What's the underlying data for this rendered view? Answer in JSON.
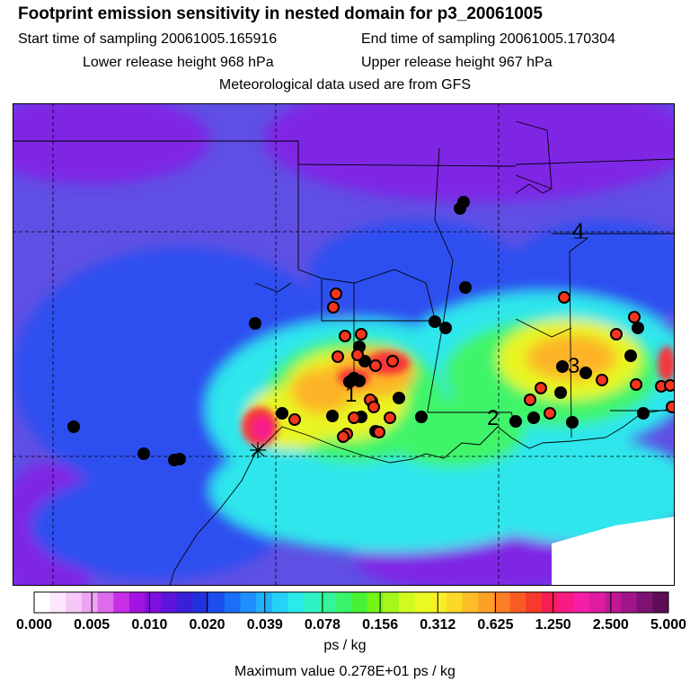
{
  "header": {
    "title": "Footprint emission sensitivity in nested domain for p3_20061005",
    "start_label": "Start time of sampling 20061005.165916",
    "end_label": "End time of sampling 20061005.170304",
    "lower_label": "Lower release height  968 hPa",
    "upper_label": "Upper release height  967 hPa",
    "met_label": "Meteorological data used are from GFS"
  },
  "colorbar": {
    "unit": "ps / kg",
    "max_label": "Maximum value  0.278E+01 ps / kg",
    "tick_labels": [
      "0.000",
      "0.005",
      "0.010",
      "0.020",
      "0.039",
      "0.078",
      "0.156",
      "0.312",
      "0.625",
      "1.250",
      "2.500",
      "5.000"
    ],
    "colors": [
      "#ffffff",
      "#fde6fd",
      "#f6c8f8",
      "#eda4f3",
      "#dd6cec",
      "#c82fe6",
      "#a214e0",
      "#8010dd",
      "#5d15db",
      "#3a1fd8",
      "#2231e0",
      "#1a4eed",
      "#1a6ef8",
      "#1e90fd",
      "#21b0fc",
      "#25d1f7",
      "#29ebeb",
      "#2ff2c4",
      "#34f59a",
      "#3af46b",
      "#47f236",
      "#73f516",
      "#a5f81a",
      "#d0fb1f",
      "#eafa22",
      "#f7ef25",
      "#fcd927",
      "#fdbd27",
      "#fda026",
      "#fc7f25",
      "#fa5b24",
      "#f73a2b",
      "#f81e55",
      "#f91b83",
      "#f51ea8",
      "#e01ca0",
      "#c11898",
      "#a0158a",
      "#7e1272",
      "#5c0d55"
    ]
  },
  "map": {
    "labels": [
      "1",
      "2",
      "3",
      "4"
    ],
    "colors": {
      "background": "#5f4fe4",
      "blue": "#2e4ff0",
      "purple": "#7f27e5",
      "cyan": "#2ee6ec",
      "green": "#3ff46a",
      "yellow": "#e8f524",
      "orange": "#fdb425",
      "red": "#f7363a",
      "magenta": "#f81e8d",
      "red_marker": "#f5361e",
      "black_marker": "#000000"
    }
  }
}
